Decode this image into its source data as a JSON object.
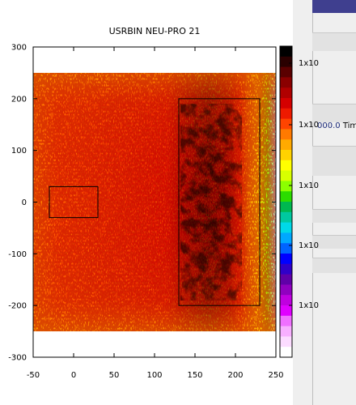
{
  "window": {
    "fragment_value": "000.0",
    "fragment_label": "Time"
  },
  "chart_data": {
    "type": "heatmap",
    "title": "USRBIN NEU-PRO 21",
    "xlabel": "",
    "ylabel": "",
    "xlim": [
      -50,
      250
    ],
    "ylim": [
      -300,
      300
    ],
    "x_ticks": [
      -50,
      0,
      50,
      100,
      150,
      200,
      250
    ],
    "y_ticks": [
      300,
      200,
      100,
      0,
      -100,
      -200,
      -300
    ],
    "data_extent": {
      "x": [
        -50,
        250
      ],
      "y": [
        -250,
        250
      ]
    },
    "regions": [
      {
        "x": [
          -30,
          30
        ],
        "y": [
          -30,
          30
        ]
      },
      {
        "x": [
          130,
          230
        ],
        "y": [
          -200,
          200
        ]
      }
    ],
    "colorbar": {
      "labels": [
        "1x10",
        "1x10",
        "1x10",
        "1x10",
        "1x10"
      ],
      "colors": [
        "#000000",
        "#2a0000",
        "#5a0000",
        "#8a0000",
        "#b00000",
        "#d40000",
        "#ee1a00",
        "#ff4400",
        "#ff7a00",
        "#ffaa00",
        "#ffd200",
        "#ffff00",
        "#d8ff00",
        "#8cff00",
        "#2cdc00",
        "#00b850",
        "#00c8a0",
        "#00d8e8",
        "#00a8ff",
        "#0064ff",
        "#0000ff",
        "#3000c8",
        "#6000a8",
        "#9000c0",
        "#c000e0",
        "#e000ff",
        "#f070ff",
        "#f8b0ff",
        "#fcdcff",
        "#ffffff"
      ]
    }
  }
}
